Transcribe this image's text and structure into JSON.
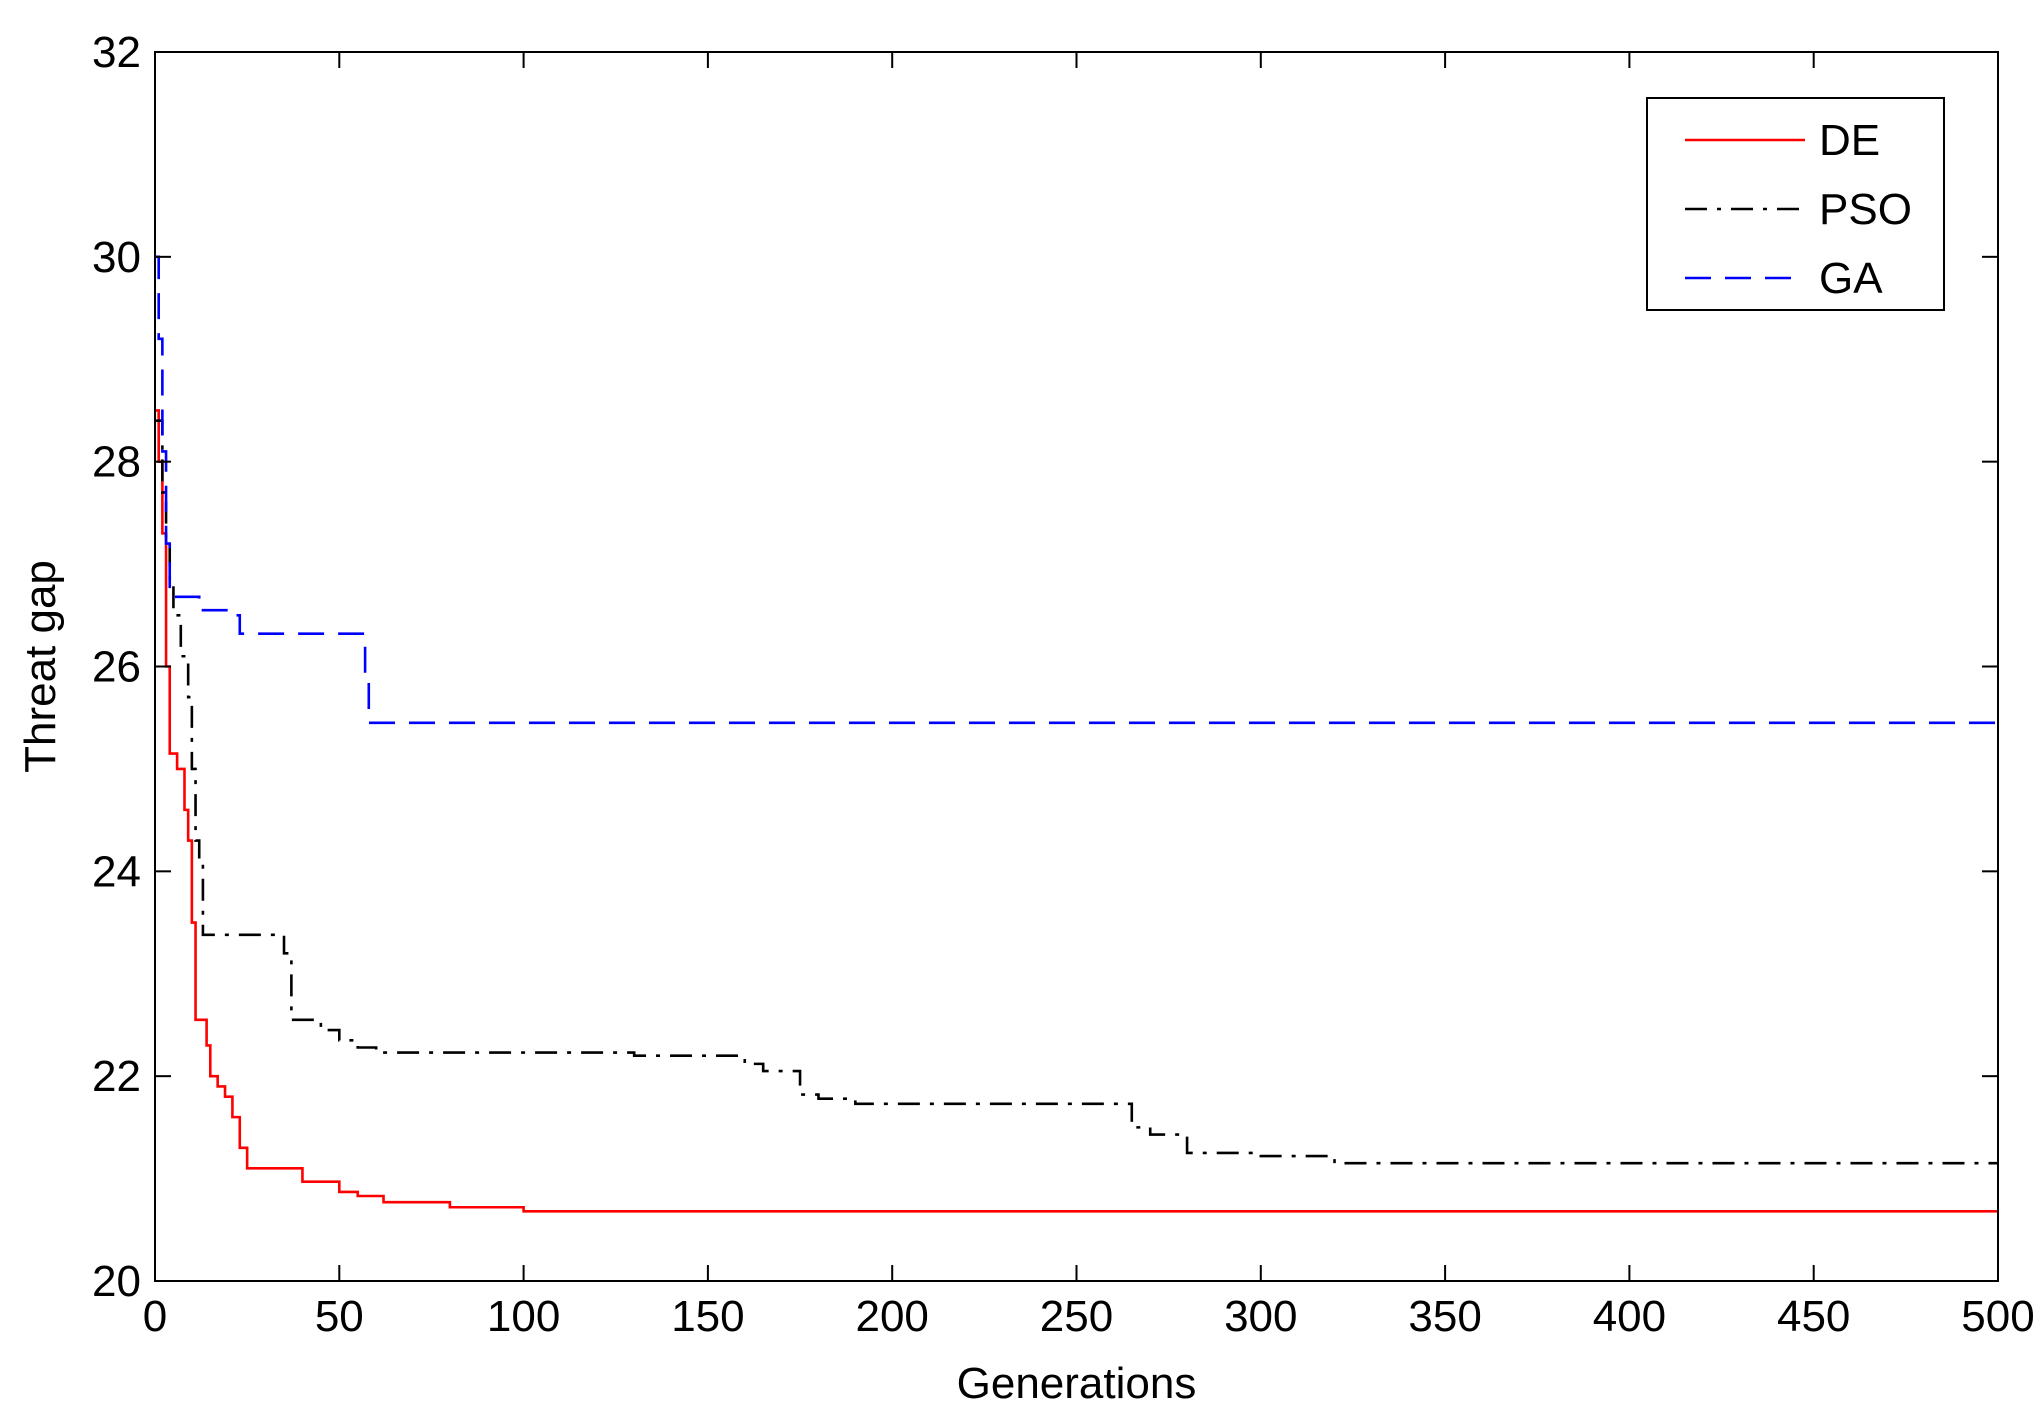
{
  "chart_data": {
    "type": "line",
    "xlabel": "Generations",
    "ylabel": "Threat gap",
    "xlim": [
      0,
      500
    ],
    "ylim": [
      20,
      32
    ],
    "xticks": [
      0,
      50,
      100,
      150,
      200,
      250,
      300,
      350,
      400,
      450,
      500
    ],
    "yticks": [
      20,
      22,
      24,
      26,
      28,
      30,
      32
    ],
    "grid": false,
    "legend_position": "top-right",
    "series": [
      {
        "name": "DE",
        "color": "#ff0000",
        "style": "solid",
        "x": [
          0,
          1,
          1,
          2,
          2,
          3,
          3,
          4,
          4,
          5,
          5,
          6,
          6,
          8,
          8,
          9,
          9,
          10,
          10,
          11,
          11,
          12,
          12,
          14,
          14,
          15,
          15,
          17,
          17,
          19,
          19,
          21,
          21,
          23,
          23,
          25,
          25,
          40,
          40,
          50,
          50,
          55,
          55,
          62,
          62,
          80,
          80,
          100,
          100,
          500
        ],
        "y": [
          28.5,
          28.5,
          28.0,
          28.0,
          27.3,
          27.3,
          26.0,
          26.0,
          25.15,
          25.15,
          25.15,
          25.15,
          25.0,
          25.0,
          24.6,
          24.6,
          24.3,
          24.3,
          23.5,
          23.5,
          22.55,
          22.55,
          22.55,
          22.55,
          22.3,
          22.3,
          22.0,
          22.0,
          21.9,
          21.9,
          21.8,
          21.8,
          21.6,
          21.6,
          21.3,
          21.3,
          21.1,
          21.1,
          20.97,
          20.97,
          20.87,
          20.87,
          20.83,
          20.83,
          20.77,
          20.77,
          20.72,
          20.72,
          20.68,
          20.68
        ]
      },
      {
        "name": "PSO",
        "color": "#000000",
        "style": "dashdot",
        "x": [
          0,
          2,
          2,
          3,
          3,
          4,
          4,
          5,
          5,
          7,
          7,
          9,
          9,
          10,
          10,
          11,
          11,
          12,
          12,
          13,
          13,
          35,
          35,
          37,
          37,
          45,
          45,
          50,
          50,
          55,
          55,
          60,
          60,
          130,
          130,
          160,
          160,
          165,
          165,
          175,
          175,
          180,
          180,
          190,
          190,
          265,
          265,
          270,
          270,
          280,
          280,
          300,
          300,
          320,
          320,
          500
        ],
        "y": [
          28.4,
          28.4,
          27.7,
          27.7,
          27.2,
          27.2,
          26.8,
          26.8,
          26.5,
          26.5,
          26.1,
          26.1,
          25.7,
          25.7,
          25.0,
          25.0,
          24.3,
          24.3,
          24.1,
          24.1,
          23.38,
          23.38,
          23.2,
          23.2,
          22.55,
          22.55,
          22.45,
          22.45,
          22.35,
          22.35,
          22.28,
          22.28,
          22.23,
          22.23,
          22.2,
          22.2,
          22.12,
          22.12,
          22.05,
          22.05,
          21.82,
          21.82,
          21.78,
          21.78,
          21.73,
          21.73,
          21.5,
          21.5,
          21.43,
          21.43,
          21.25,
          21.25,
          21.22,
          21.22,
          21.15,
          21.15
        ]
      },
      {
        "name": "GA",
        "color": "#0000ff",
        "style": "dashed",
        "x": [
          0,
          1,
          1,
          2,
          2,
          3,
          3,
          4,
          4,
          12,
          12,
          20,
          20,
          23,
          23,
          57,
          57,
          58,
          58,
          500
        ],
        "y": [
          30.0,
          30.0,
          29.2,
          29.2,
          28.1,
          28.1,
          27.2,
          27.2,
          26.68,
          26.68,
          26.55,
          26.55,
          26.5,
          26.5,
          26.32,
          26.32,
          25.85,
          25.85,
          25.45,
          25.45
        ]
      }
    ]
  }
}
